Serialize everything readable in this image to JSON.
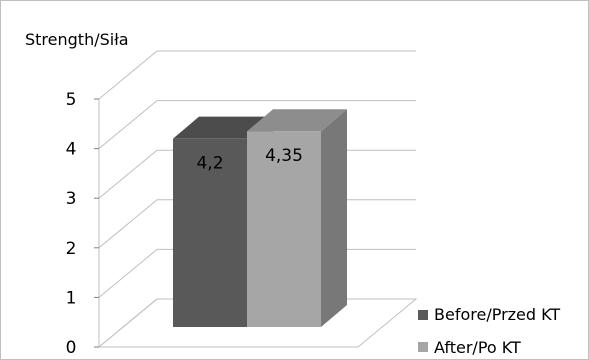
{
  "chart_data": {
    "type": "bar",
    "style": "3d-clustered-column",
    "ylabel": "Strength/Siła",
    "ylim": [
      0,
      5
    ],
    "yticks": [
      "0",
      "1",
      "2",
      "3",
      "4",
      "5"
    ],
    "grid": true,
    "legend_position": "bottom-right",
    "series": [
      {
        "name": "Before/Przed KT",
        "value": 4.2,
        "data_label": "4,2",
        "color": "#595959"
      },
      {
        "name": "After/Po KT",
        "value": 4.35,
        "data_label": "4,35",
        "color": "#a6a6a6"
      }
    ]
  }
}
